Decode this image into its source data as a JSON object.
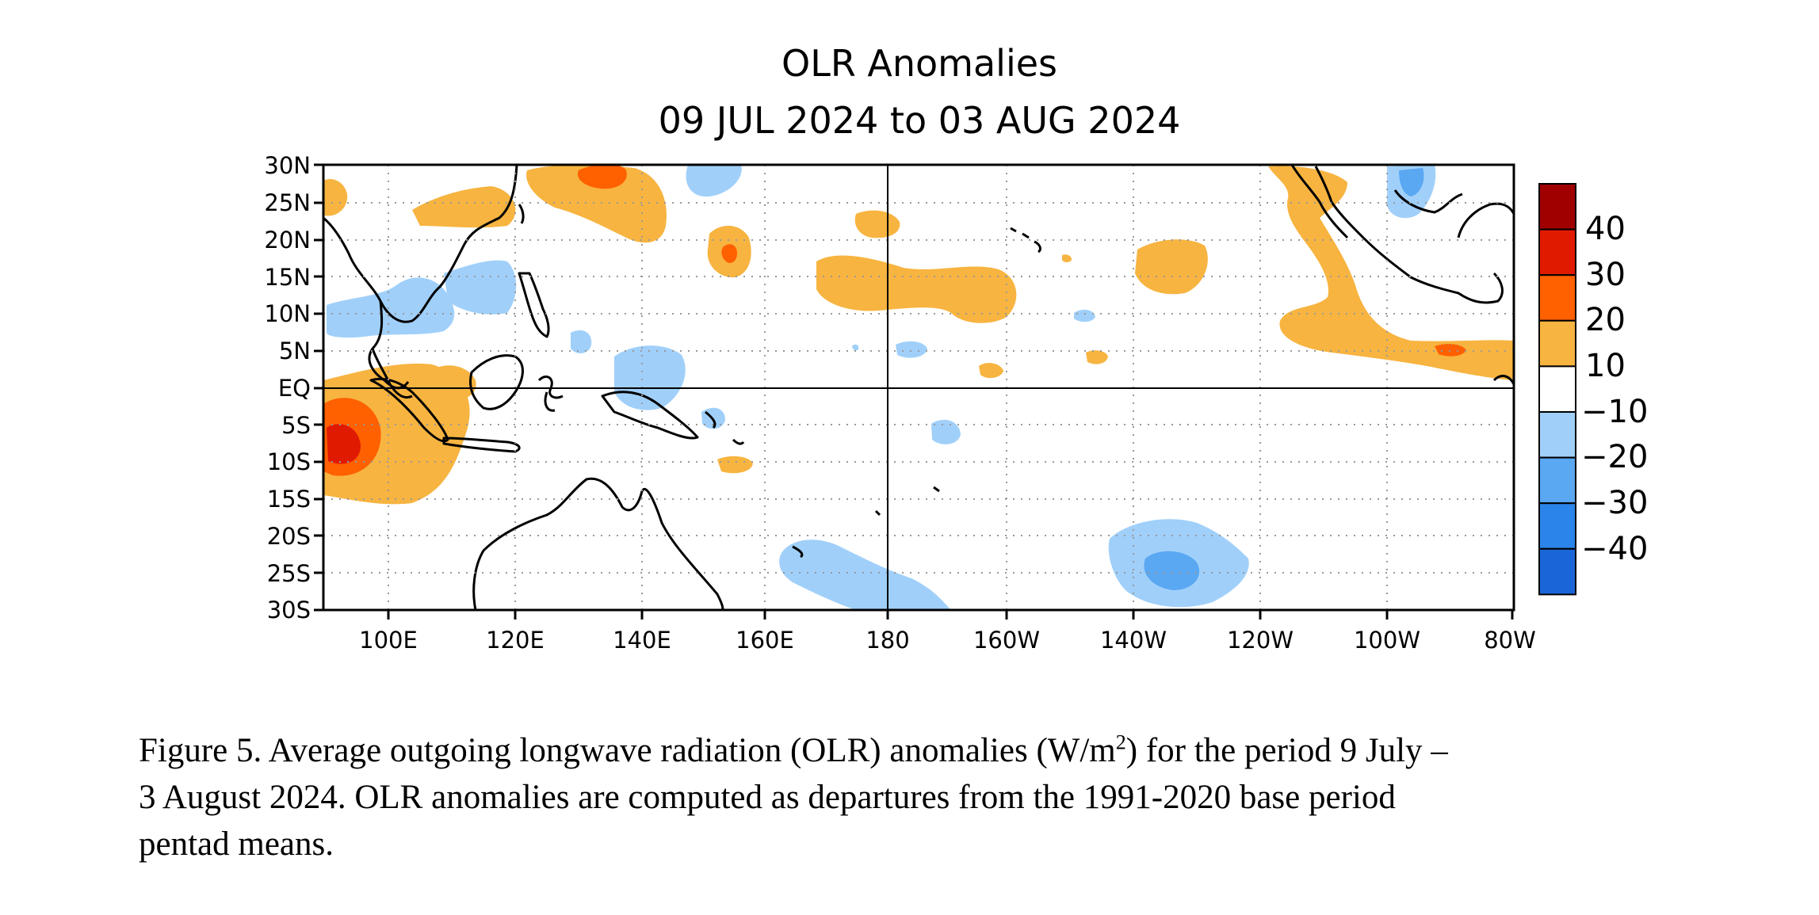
{
  "figure": {
    "title": "OLR Anomalies",
    "subtitle": "09 JUL 2024 to 03 AUG 2024",
    "lat_labels": [
      "30N",
      "25N",
      "20N",
      "15N",
      "10N",
      "5N",
      "EQ",
      "5S",
      "10S",
      "15S",
      "20S",
      "25S",
      "30S"
    ],
    "lon_labels": [
      "100E",
      "120E",
      "140E",
      "160E",
      "180",
      "160W",
      "140W",
      "120W",
      "100W",
      "80W"
    ],
    "colorbar": {
      "labels": [
        "40",
        "30",
        "20",
        "10",
        "−10",
        "−20",
        "−30",
        "−40"
      ],
      "colors": [
        "#a00000",
        "#e01a00",
        "#ff6000",
        "#f7b440",
        "#ffffff",
        "#a0d0fa",
        "#5aa7f2",
        "#2a84ea",
        "#1a66d8"
      ]
    },
    "colors": {
      "pos1": "#f7b440",
      "pos2": "#ff6000",
      "pos3": "#e01a00",
      "neg1": "#a0d0fa",
      "neg2": "#5aa7f2"
    }
  },
  "caption": {
    "part1": "Figure 5. Average outgoing longwave radiation (OLR) anomalies (W/m",
    "sup": "2",
    "part2": ") for the period 9 July –",
    "line2": "3 August 2024.  OLR anomalies are computed as departures from the 1991-2020 base period",
    "line3": "pentad means."
  }
}
